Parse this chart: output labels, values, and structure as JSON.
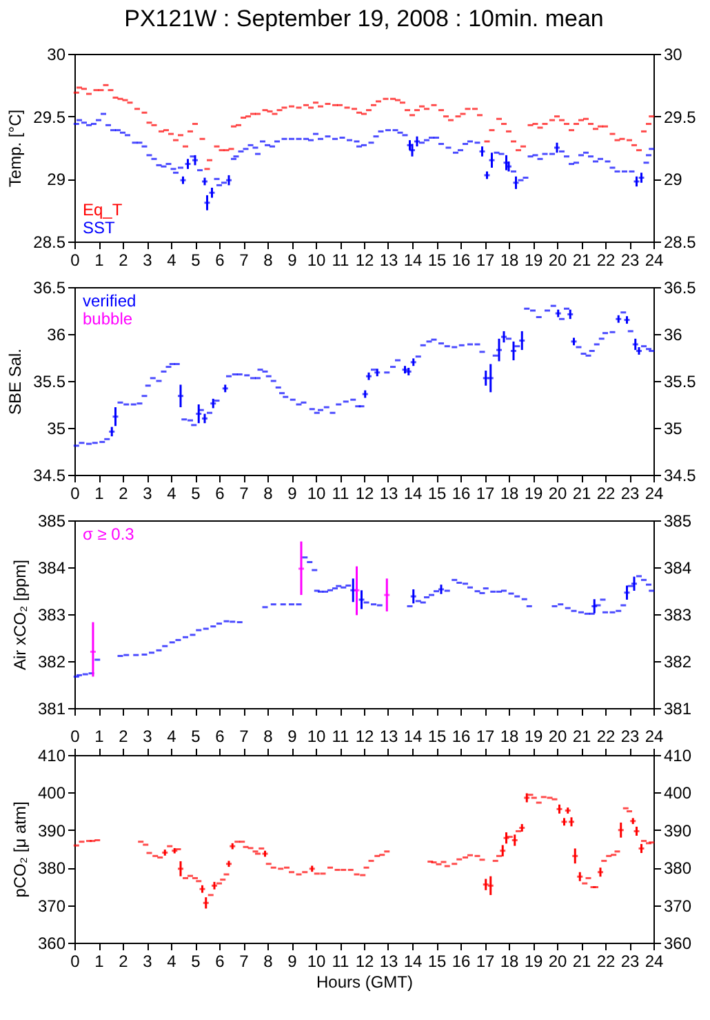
{
  "chart_data": [
    {
      "type": "scatter",
      "title": "PX121W : September 19, 2008 : 10min. mean",
      "ylabel": "Temp. [°C]",
      "legend": "bottom left",
      "xlim": [
        0,
        24
      ],
      "xticks": [
        0,
        1,
        2,
        3,
        4,
        5,
        6,
        7,
        8,
        9,
        10,
        11,
        12,
        13,
        14,
        15,
        16,
        17,
        18,
        19,
        20,
        21,
        22,
        23,
        24
      ],
      "ylim": [
        28.5,
        30
      ],
      "yticks": [
        28.5,
        29,
        29.5,
        30
      ],
      "y2lim": [
        28.5,
        30
      ],
      "y2ticks": [
        28.5,
        29,
        29.5,
        30
      ],
      "series": [
        {
          "name": "Eq_T",
          "color": "#ff0000",
          "x": [
            0.08,
            0.2,
            0.4,
            0.6,
            0.9,
            1.1,
            1.3,
            1.5,
            1.7,
            1.9,
            2.1,
            2.3,
            2.6,
            2.9,
            3.1,
            3.3,
            3.6,
            3.8,
            4.0,
            4.2,
            4.4,
            4.6,
            4.8,
            5.0,
            5.3,
            5.5,
            5.6,
            5.9,
            6.1,
            6.3,
            6.5,
            6.6,
            6.8,
            7.0,
            7.2,
            7.4,
            7.6,
            7.9,
            8.1,
            8.3,
            8.5,
            8.7,
            9.0,
            9.3,
            9.6,
            9.8,
            10.0,
            10.2,
            10.5,
            10.8,
            11.0,
            11.3,
            11.6,
            11.8,
            12.0,
            12.2,
            12.4,
            12.6,
            12.9,
            13.2,
            13.4,
            13.6,
            13.8,
            14.0,
            14.2,
            14.4,
            14.6,
            14.9,
            15.2,
            15.4,
            15.6,
            15.9,
            16.1,
            16.3,
            16.6,
            16.8,
            17.1,
            17.3,
            17.6,
            17.8,
            18.0,
            18.2,
            18.4,
            18.6,
            18.9,
            19.1,
            19.3,
            19.5,
            19.8,
            20.0,
            20.2,
            20.4,
            20.6,
            20.8,
            21.0,
            21.2,
            21.4,
            21.6,
            21.8,
            22.0,
            22.3,
            22.5,
            22.7,
            23.0,
            23.2,
            23.4,
            23.6,
            23.8,
            23.92
          ],
          "values": [
            29.69,
            29.73,
            29.72,
            29.68,
            29.71,
            29.71,
            29.75,
            29.71,
            29.65,
            29.64,
            29.63,
            29.61,
            29.56,
            29.53,
            29.45,
            29.43,
            29.38,
            29.39,
            29.36,
            29.31,
            29.35,
            29.26,
            29.38,
            29.44,
            29.32,
            29.08,
            29.15,
            29.26,
            29.23,
            29.23,
            29.24,
            29.42,
            29.43,
            29.49,
            29.5,
            29.52,
            29.52,
            29.55,
            29.54,
            29.52,
            29.55,
            29.57,
            29.58,
            29.57,
            29.59,
            29.57,
            29.61,
            29.58,
            29.6,
            29.59,
            29.59,
            29.57,
            29.56,
            29.53,
            29.52,
            29.55,
            29.59,
            29.62,
            29.64,
            29.64,
            29.63,
            29.61,
            29.55,
            29.51,
            29.55,
            29.58,
            29.56,
            29.59,
            29.55,
            29.5,
            29.47,
            29.5,
            29.52,
            29.56,
            29.56,
            29.51,
            29.3,
            29.39,
            29.48,
            29.44,
            29.38,
            29.3,
            29.23,
            29.26,
            29.43,
            29.44,
            29.41,
            29.44,
            29.47,
            29.5,
            29.47,
            29.44,
            29.39,
            29.44,
            29.47,
            29.48,
            29.44,
            29.4,
            29.42,
            29.42,
            29.36,
            29.31,
            29.32,
            29.31,
            29.27,
            29.23,
            29.38,
            29.44,
            29.5
          ]
        },
        {
          "name": "SST",
          "color": "#0000ff",
          "x": [
            0.08,
            0.2,
            0.4,
            0.6,
            0.8,
            1.0,
            1.2,
            1.4,
            1.6,
            1.8,
            2.0,
            2.2,
            2.5,
            2.7,
            2.9,
            3.1,
            3.3,
            3.5,
            3.7,
            3.9,
            4.1,
            4.2,
            4.4,
            4.5,
            4.7,
            4.9,
            5.0,
            5.2,
            5.4,
            5.5,
            5.7,
            5.9,
            6.0,
            6.2,
            6.4,
            6.6,
            6.7,
            6.9,
            7.1,
            7.3,
            7.5,
            7.6,
            7.8,
            8.0,
            8.2,
            8.4,
            8.7,
            9.0,
            9.3,
            9.6,
            9.8,
            10.0,
            10.2,
            10.5,
            10.8,
            11.1,
            11.4,
            11.7,
            11.8,
            12.0,
            12.3,
            12.5,
            12.7,
            13.0,
            13.3,
            13.5,
            13.7,
            13.9,
            14.0,
            14.2,
            14.4,
            14.6,
            14.8,
            15.0,
            15.2,
            15.5,
            15.8,
            16.0,
            16.2,
            16.4,
            16.7,
            16.9,
            17.1,
            17.3,
            17.5,
            17.7,
            17.9,
            18.0,
            18.2,
            18.3,
            18.5,
            18.7,
            18.9,
            19.1,
            19.3,
            19.5,
            19.8,
            20.0,
            20.2,
            20.4,
            20.6,
            20.8,
            21.0,
            21.2,
            21.4,
            21.6,
            21.8,
            22.1,
            22.3,
            22.5,
            22.8,
            23.1,
            23.3,
            23.5,
            23.7,
            23.8,
            23.92
          ],
          "values": [
            29.44,
            29.47,
            29.45,
            29.43,
            29.44,
            29.47,
            29.52,
            29.43,
            29.39,
            29.39,
            29.37,
            29.35,
            29.29,
            29.29,
            29.26,
            29.19,
            29.16,
            29.11,
            29.1,
            29.12,
            29.08,
            29.05,
            29.09,
            28.99,
            29.12,
            29.18,
            29.15,
            29.07,
            28.98,
            28.81,
            28.89,
            29.0,
            28.95,
            28.97,
            28.99,
            29.16,
            29.18,
            29.22,
            29.24,
            29.27,
            29.25,
            29.2,
            29.3,
            29.27,
            29.26,
            29.3,
            29.32,
            29.32,
            29.32,
            29.32,
            29.31,
            29.36,
            29.32,
            29.34,
            29.32,
            29.33,
            29.31,
            29.3,
            29.26,
            29.27,
            29.29,
            29.34,
            29.38,
            29.39,
            29.39,
            29.37,
            29.35,
            29.27,
            29.23,
            29.3,
            29.29,
            29.31,
            29.33,
            29.33,
            29.28,
            29.25,
            29.21,
            29.23,
            29.28,
            29.3,
            29.29,
            29.22,
            29.03,
            29.15,
            29.21,
            29.2,
            29.13,
            29.1,
            29.06,
            28.97,
            28.99,
            29.01,
            29.18,
            29.19,
            29.16,
            29.2,
            29.2,
            29.25,
            29.22,
            29.18,
            29.12,
            29.13,
            29.19,
            29.21,
            29.18,
            29.14,
            29.16,
            29.14,
            29.09,
            29.06,
            29.06,
            29.06,
            28.98,
            29.01,
            29.13,
            29.19,
            29.24
          ],
          "errors": [
            null,
            null,
            null,
            null,
            null,
            null,
            null,
            null,
            null,
            null,
            null,
            null,
            null,
            null,
            null,
            null,
            null,
            null,
            null,
            null,
            null,
            null,
            null,
            0.03,
            0.04,
            null,
            0.04,
            null,
            0.03,
            0.06,
            0.04,
            null,
            null,
            null,
            0.04,
            null,
            null,
            null,
            null,
            null,
            null,
            null,
            null,
            null,
            null,
            null,
            null,
            null,
            null,
            null,
            null,
            null,
            null,
            null,
            null,
            null,
            null,
            null,
            null,
            null,
            null,
            null,
            null,
            null,
            null,
            null,
            null,
            0.04,
            0.05,
            0.04,
            null,
            null,
            null,
            null,
            null,
            null,
            null,
            null,
            null,
            null,
            null,
            0.04,
            0.03,
            0.06,
            null,
            null,
            0.06,
            0.04,
            null,
            0.05,
            null,
            null,
            null,
            null,
            null,
            null,
            null,
            0.04,
            null,
            null,
            null,
            null,
            null,
            null,
            null,
            null,
            null,
            null,
            null,
            null,
            null,
            null,
            0.04,
            0.04,
            null,
            null,
            null
          ]
        }
      ]
    },
    {
      "type": "scatter",
      "ylabel": "SBE Sal.",
      "legend": "top left",
      "xlim": [
        0,
        24
      ],
      "xticks": [
        0,
        1,
        2,
        3,
        4,
        5,
        6,
        7,
        8,
        9,
        10,
        11,
        12,
        13,
        14,
        15,
        16,
        17,
        18,
        19,
        20,
        21,
        22,
        23,
        24
      ],
      "ylim": [
        34.5,
        36.5
      ],
      "yticks": [
        34.5,
        35,
        35.5,
        36,
        36.5
      ],
      "y2lim": [
        34.5,
        36.5
      ],
      "y2ticks": [
        34.5,
        35,
        35.5,
        36,
        36.5
      ],
      "series": [
        {
          "name": "verified",
          "color": "#0000ff",
          "x": [
            0.08,
            0.3,
            0.6,
            0.85,
            1.15,
            1.35,
            1.55,
            1.7,
            1.9,
            2.15,
            2.45,
            2.7,
            2.9,
            3.05,
            3.25,
            3.5,
            3.7,
            3.9,
            4.05,
            4.25,
            4.4,
            4.55,
            4.8,
            4.95,
            5.15,
            5.25,
            5.4,
            5.6,
            5.75,
            5.9,
            6.25,
            6.4,
            6.65,
            6.85,
            7.15,
            7.4,
            7.6,
            7.7,
            7.9,
            8.05,
            8.25,
            8.45,
            8.6,
            8.75,
            9.05,
            9.3,
            9.5,
            9.85,
            10.05,
            10.2,
            10.45,
            10.7,
            10.95,
            11.25,
            11.55,
            11.75,
            11.9,
            12.05,
            12.2,
            12.4,
            12.55,
            12.95,
            13.2,
            13.4,
            13.7,
            13.85,
            14.05,
            14.25,
            14.45,
            14.7,
            14.9,
            15.2,
            15.45,
            15.75,
            16.05,
            16.4,
            16.7,
            16.9,
            17.05,
            17.25,
            17.45,
            17.6,
            17.8,
            18.0,
            18.2,
            18.35,
            18.55,
            18.75,
            19.0,
            19.25,
            19.6,
            19.85,
            20.05,
            20.2,
            20.4,
            20.55,
            20.7,
            20.9,
            21.1,
            21.3,
            21.45,
            21.65,
            21.85,
            22.0,
            22.3,
            22.55,
            22.75,
            22.9,
            23.05,
            23.25,
            23.4,
            23.6,
            23.8,
            23.92
          ],
          "values": [
            34.81,
            34.84,
            34.83,
            34.84,
            34.85,
            34.88,
            34.96,
            35.12,
            35.27,
            35.25,
            35.25,
            35.26,
            35.34,
            35.45,
            35.53,
            35.5,
            35.6,
            35.65,
            35.68,
            35.68,
            35.34,
            35.09,
            35.08,
            35.03,
            35.15,
            35.19,
            35.1,
            35.16,
            35.26,
            35.29,
            35.42,
            35.55,
            35.57,
            35.57,
            35.56,
            35.53,
            35.53,
            35.62,
            35.6,
            35.55,
            35.5,
            35.43,
            35.37,
            35.33,
            35.3,
            35.25,
            35.27,
            35.2,
            35.16,
            35.19,
            35.22,
            35.16,
            35.25,
            35.28,
            35.3,
            35.23,
            35.23,
            35.36,
            35.55,
            35.62,
            35.59,
            35.59,
            35.65,
            35.72,
            35.62,
            35.6,
            35.7,
            35.76,
            35.88,
            35.92,
            35.94,
            35.9,
            35.87,
            35.86,
            35.88,
            35.89,
            35.89,
            35.81,
            35.53,
            35.53,
            35.77,
            35.83,
            35.97,
            35.95,
            35.82,
            35.87,
            35.93,
            36.27,
            36.25,
            36.18,
            36.25,
            36.3,
            36.22,
            36.16,
            36.27,
            36.21,
            35.92,
            35.86,
            35.79,
            35.77,
            35.82,
            35.89,
            35.95,
            36.01,
            36.02,
            36.16,
            36.23,
            36.15,
            36.03,
            35.89,
            35.82,
            35.87,
            35.84,
            35.82
          ],
          "errors": [
            null,
            null,
            null,
            null,
            null,
            null,
            0.05,
            0.1,
            null,
            null,
            null,
            null,
            null,
            null,
            null,
            null,
            null,
            null,
            null,
            null,
            0.12,
            null,
            null,
            null,
            0.1,
            null,
            0.05,
            null,
            0.05,
            null,
            0.04,
            null,
            null,
            null,
            null,
            null,
            null,
            null,
            null,
            null,
            null,
            null,
            null,
            null,
            null,
            null,
            null,
            null,
            null,
            null,
            null,
            null,
            null,
            null,
            null,
            null,
            null,
            0.04,
            0.04,
            null,
            0.04,
            null,
            null,
            null,
            0.04,
            0.04,
            0.04,
            null,
            null,
            null,
            null,
            null,
            null,
            null,
            null,
            null,
            null,
            null,
            0.08,
            0.15,
            null,
            0.12,
            0.06,
            null,
            0.1,
            null,
            0.1,
            null,
            null,
            null,
            null,
            null,
            0.04,
            null,
            null,
            0.05,
            0.04,
            null,
            null,
            null,
            null,
            null,
            null,
            null,
            null,
            0.04,
            null,
            0.04,
            null,
            0.06,
            0.04,
            null,
            null,
            null
          ]
        },
        {
          "name": "bubble",
          "color": "#ff00ff"
        }
      ]
    },
    {
      "type": "scatter",
      "ylabel": "Air xCO₂ [ppm]",
      "legend": "top left",
      "tick_labels": "y",
      "xlim": [
        0,
        24
      ],
      "xticks": [
        0,
        1,
        2,
        3,
        4,
        5,
        6,
        7,
        8,
        9,
        10,
        11,
        12,
        13,
        14,
        15,
        16,
        17,
        18,
        19,
        20,
        21,
        22,
        23,
        24
      ],
      "ylim": [
        381,
        385
      ],
      "yticks": [
        381,
        382,
        383,
        384,
        385
      ],
      "y2lim": [
        381,
        385
      ],
      "y2ticks": [
        381,
        382,
        383,
        384,
        385
      ],
      "series": [
        {
          "color": "#0000ff",
          "x": [
            0.08,
            0.2,
            0.45,
            0.7,
            0.95,
            1.9,
            2.15,
            2.55,
            2.9,
            3.2,
            3.5,
            3.75,
            4.05,
            4.3,
            4.6,
            4.9,
            5.15,
            5.45,
            5.75,
            6.0,
            6.3,
            6.55,
            6.85,
            7.9,
            8.25,
            8.65,
            9.0,
            9.3,
            9.55,
            9.75,
            9.95,
            10.05,
            10.2,
            10.4,
            10.6,
            10.8,
            10.95,
            11.15,
            11.35,
            11.55,
            11.9,
            12.1,
            12.4,
            12.65,
            13.9,
            14.05,
            14.25,
            14.45,
            14.6,
            14.8,
            15.0,
            15.2,
            15.45,
            15.75,
            15.95,
            16.2,
            16.4,
            16.7,
            16.9,
            17.05,
            17.35,
            17.6,
            17.8,
            18.1,
            18.35,
            18.65,
            18.85,
            19.9,
            20.15,
            20.45,
            20.7,
            21.0,
            21.25,
            21.45,
            21.55,
            21.7,
            21.9,
            22.0,
            22.3,
            22.55,
            22.75,
            22.9,
            23.05,
            23.2,
            23.4,
            23.6,
            23.8,
            23.92
          ],
          "values": [
            381.67,
            381.7,
            381.72,
            381.74,
            382.03,
            382.11,
            382.13,
            382.13,
            382.14,
            382.18,
            382.23,
            382.32,
            382.4,
            382.45,
            382.51,
            382.56,
            382.66,
            382.69,
            382.74,
            382.8,
            382.85,
            382.84,
            382.83,
            383.15,
            383.21,
            383.21,
            383.21,
            383.21,
            384.21,
            384.11,
            383.94,
            383.5,
            383.48,
            383.48,
            383.51,
            383.55,
            383.6,
            383.57,
            383.61,
            383.51,
            383.31,
            383.25,
            383.21,
            383.19,
            383.17,
            383.38,
            383.28,
            383.25,
            383.36,
            383.41,
            383.49,
            383.53,
            383.5,
            383.73,
            383.67,
            383.65,
            383.57,
            383.49,
            383.45,
            383.55,
            383.48,
            383.48,
            383.5,
            383.44,
            383.38,
            383.32,
            383.17,
            383.17,
            383.21,
            383.13,
            383.07,
            383.04,
            383.01,
            383.01,
            383.17,
            383.19,
            383.31,
            383.04,
            383.04,
            383.07,
            383.19,
            383.46,
            383.6,
            383.65,
            383.81,
            383.73,
            383.63,
            383.5
          ],
          "errors": [
            null,
            null,
            null,
            null,
            null,
            null,
            null,
            null,
            null,
            null,
            null,
            null,
            null,
            null,
            null,
            null,
            null,
            null,
            null,
            null,
            null,
            null,
            null,
            null,
            null,
            null,
            null,
            null,
            null,
            null,
            null,
            null,
            null,
            null,
            null,
            null,
            null,
            null,
            null,
            0.25,
            0.2,
            null,
            null,
            null,
            null,
            0.15,
            null,
            null,
            null,
            null,
            null,
            0.1,
            null,
            null,
            null,
            null,
            null,
            null,
            null,
            null,
            null,
            null,
            null,
            null,
            null,
            null,
            null,
            null,
            null,
            null,
            null,
            null,
            null,
            null,
            0.15,
            null,
            null,
            null,
            null,
            null,
            null,
            0.15,
            null,
            0.15,
            null,
            null,
            null,
            null
          ]
        },
        {
          "name": "σ ≥ 0.3",
          "color": "#ff00ff",
          "x": [
            0.77,
            9.4,
            11.7,
            12.95
          ],
          "values": [
            382.2,
            383.97,
            383.51,
            383.41
          ],
          "errors": [
            [
              381.67,
              382.83
            ],
            [
              383.41,
              384.55
            ],
            [
              382.98,
              384.02
            ],
            [
              383.06,
              383.76
            ]
          ]
        }
      ]
    },
    {
      "type": "scatter",
      "ylabel": "pCO₂ [μ atm]",
      "xlabel": "Hours (GMT)",
      "xlim": [
        0,
        24
      ],
      "xticks": [
        0,
        1,
        2,
        3,
        4,
        5,
        6,
        7,
        8,
        9,
        10,
        11,
        12,
        13,
        14,
        15,
        16,
        17,
        18,
        19,
        20,
        21,
        22,
        23,
        24
      ],
      "x2lim": [
        0,
        24
      ],
      "x2ticks": [
        0,
        1,
        2,
        3,
        4,
        5,
        6,
        7,
        8,
        9,
        10,
        11,
        12,
        13,
        14,
        15,
        16,
        17,
        18,
        19,
        20,
        21,
        22,
        23,
        24
      ],
      "ylim": [
        360,
        410
      ],
      "yticks": [
        360,
        370,
        380,
        390,
        400,
        410
      ],
      "y2lim": [
        360,
        410
      ],
      "y2ticks": [
        360,
        370,
        380,
        390,
        400,
        410
      ],
      "series": [
        {
          "color": "#ff0000",
          "x": [
            0.08,
            0.3,
            0.6,
            0.75,
            0.95,
            2.75,
            2.95,
            3.1,
            3.35,
            3.55,
            3.75,
            3.95,
            4.15,
            4.3,
            4.4,
            4.6,
            4.8,
            5.0,
            5.15,
            5.3,
            5.45,
            5.65,
            5.8,
            6.0,
            6.15,
            6.3,
            6.4,
            6.55,
            6.75,
            6.95,
            7.1,
            7.3,
            7.5,
            7.6,
            7.75,
            7.9,
            8.05,
            8.25,
            8.55,
            8.8,
            9.0,
            9.3,
            9.55,
            9.85,
            10.05,
            10.3,
            10.6,
            10.9,
            11.15,
            11.45,
            11.7,
            11.95,
            12.1,
            12.3,
            12.55,
            12.75,
            12.95,
            14.75,
            14.9,
            15.1,
            15.3,
            15.45,
            15.75,
            15.95,
            16.2,
            16.4,
            16.7,
            16.9,
            17.05,
            17.25,
            17.45,
            17.6,
            17.75,
            17.9,
            18.05,
            18.25,
            18.4,
            18.55,
            18.75,
            18.9,
            19.05,
            19.25,
            19.45,
            19.7,
            19.9,
            20.1,
            20.3,
            20.45,
            20.6,
            20.75,
            20.95,
            21.15,
            21.3,
            21.5,
            21.6,
            21.8,
            21.95,
            22.15,
            22.35,
            22.5,
            22.65,
            22.85,
            23.0,
            23.15,
            23.3,
            23.5,
            23.6,
            23.8,
            23.92
          ],
          "values": [
            385.9,
            386.9,
            387.1,
            387.1,
            387.3,
            386.9,
            386.1,
            383.9,
            383.1,
            382.7,
            384.0,
            385.7,
            384.5,
            384.9,
            379.7,
            377.2,
            377.8,
            377.2,
            376.4,
            374.3,
            370.6,
            372.7,
            375.2,
            375.8,
            376.8,
            378.2,
            381.0,
            385.7,
            386.9,
            386.9,
            385.5,
            385.2,
            384.3,
            383.7,
            385.1,
            383.7,
            381.0,
            380.0,
            379.7,
            380.0,
            378.8,
            378.2,
            378.8,
            379.7,
            378.4,
            378.4,
            380.0,
            379.4,
            379.4,
            379.4,
            378.2,
            378.0,
            380.0,
            381.8,
            383.1,
            383.4,
            384.3,
            381.6,
            381.4,
            380.9,
            381.5,
            380.4,
            381.0,
            382.2,
            382.7,
            383.3,
            383.1,
            382.1,
            375.5,
            375.2,
            381.8,
            383.1,
            384.5,
            387.9,
            388.2,
            387.3,
            389.7,
            390.6,
            398.6,
            399.4,
            398.6,
            397.3,
            398.8,
            398.6,
            398.2,
            395.6,
            392.2,
            395.2,
            392.2,
            383.1,
            377.6,
            375.8,
            377.2,
            374.8,
            374.8,
            378.8,
            381.8,
            383.1,
            383.4,
            384.3,
            390.0,
            395.8,
            395.0,
            392.4,
            389.7,
            385.1,
            387.1,
            386.5,
            386.7
          ],
          "errors": [
            null,
            null,
            null,
            null,
            null,
            null,
            null,
            null,
            null,
            null,
            0.8,
            null,
            0.7,
            null,
            2,
            null,
            null,
            null,
            null,
            1,
            1.5,
            null,
            1,
            null,
            null,
            null,
            0.8,
            0.8,
            null,
            null,
            null,
            null,
            null,
            null,
            null,
            0.8,
            null,
            null,
            null,
            null,
            null,
            null,
            null,
            0.8,
            null,
            null,
            null,
            null,
            null,
            null,
            null,
            null,
            null,
            null,
            null,
            null,
            null,
            null,
            null,
            null,
            null,
            null,
            null,
            null,
            null,
            null,
            null,
            null,
            1.5,
            2.5,
            null,
            null,
            1.5,
            1.5,
            null,
            1.5,
            null,
            1,
            1.2,
            null,
            null,
            null,
            null,
            null,
            null,
            1.2,
            1,
            0.8,
            1.2,
            2,
            1.2,
            null,
            null,
            null,
            null,
            1.2,
            null,
            null,
            null,
            null,
            2,
            null,
            null,
            0.8,
            1.2,
            1.2,
            null,
            null,
            null
          ]
        }
      ]
    }
  ]
}
